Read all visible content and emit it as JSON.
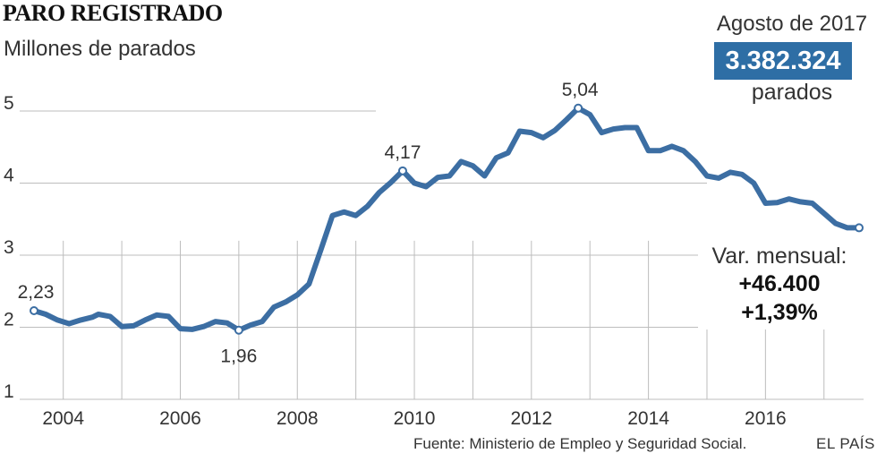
{
  "chart_data": {
    "type": "line",
    "title": "PARO REGISTRADO",
    "ylabel": "Millones de parados",
    "xlabel": "",
    "ylim": [
      1,
      5.5
    ],
    "xlim": [
      2003.4,
      2017.8
    ],
    "yticks": [
      1,
      2,
      3,
      4,
      5
    ],
    "xticks": [
      "2004",
      "2006",
      "2008",
      "2010",
      "2012",
      "2014",
      "2016"
    ],
    "grid": "horizontal-and-yearly-vertical",
    "series": [
      {
        "color": "#3c6ea3",
        "x": [
          2003.5,
          2003.7,
          2003.9,
          2004.1,
          2004.3,
          2004.5,
          2004.6,
          2004.8,
          2005.0,
          2005.2,
          2005.4,
          2005.6,
          2005.8,
          2006.0,
          2006.2,
          2006.4,
          2006.6,
          2006.8,
          2007.0,
          2007.2,
          2007.4,
          2007.6,
          2007.8,
          2008.0,
          2008.2,
          2008.4,
          2008.6,
          2008.8,
          2009.0,
          2009.2,
          2009.4,
          2009.6,
          2009.8,
          2010.0,
          2010.2,
          2010.4,
          2010.6,
          2010.8,
          2011.0,
          2011.2,
          2011.4,
          2011.6,
          2011.8,
          2012.0,
          2012.2,
          2012.4,
          2012.6,
          2012.8,
          2013.0,
          2013.2,
          2013.4,
          2013.6,
          2013.8,
          2014.0,
          2014.2,
          2014.4,
          2014.6,
          2014.8,
          2015.0,
          2015.2,
          2015.4,
          2015.6,
          2015.8,
          2016.0,
          2016.2,
          2016.4,
          2016.6,
          2016.8,
          2017.0,
          2017.2,
          2017.4,
          2017.6
        ],
        "values": [
          2.23,
          2.18,
          2.1,
          2.05,
          2.1,
          2.14,
          2.18,
          2.15,
          2.01,
          2.02,
          2.1,
          2.17,
          2.15,
          1.98,
          1.97,
          2.01,
          2.08,
          2.06,
          1.96,
          2.03,
          2.08,
          2.28,
          2.35,
          2.45,
          2.6,
          3.07,
          3.55,
          3.6,
          3.55,
          3.68,
          3.87,
          4.01,
          4.17,
          4.0,
          3.95,
          4.08,
          4.1,
          4.3,
          4.24,
          4.1,
          4.35,
          4.42,
          4.72,
          4.7,
          4.63,
          4.73,
          4.88,
          5.04,
          4.95,
          4.7,
          4.75,
          4.77,
          4.77,
          4.45,
          4.45,
          4.51,
          4.45,
          4.3,
          4.1,
          4.07,
          4.15,
          4.12,
          4.0,
          3.72,
          3.73,
          3.78,
          3.74,
          3.72,
          3.58,
          3.44,
          3.38,
          3.38
        ]
      }
    ],
    "annotations": [
      {
        "x": 2003.5,
        "value": 2.23,
        "label": "2,23"
      },
      {
        "x": 2007.0,
        "value": 1.96,
        "label": "1,96"
      },
      {
        "x": 2009.8,
        "value": 4.17,
        "label": "4,17"
      },
      {
        "x": 2012.8,
        "value": 5.04,
        "label": "5,04"
      }
    ]
  },
  "callout": {
    "date": "Agosto de 2017",
    "value": "3.382.324",
    "unit": "parados",
    "badge_color": "#2e6ea5"
  },
  "variation": {
    "label": "Var. mensual:",
    "absolute": "+46.400",
    "percent": "+1,39%"
  },
  "footer": {
    "source": "Fuente: Ministerio de Empleo y Seguridad Social.",
    "brand": "EL PAÍS"
  }
}
